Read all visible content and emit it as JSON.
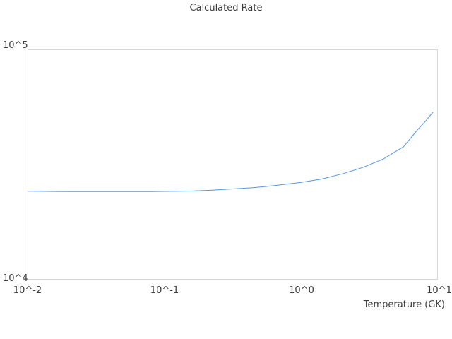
{
  "chart_data": {
    "type": "line",
    "title": "Calculated Rate",
    "xlabel": "Temperature (GK)",
    "ylabel": "",
    "x_scale": "log",
    "y_scale": "log",
    "xlim": [
      0.01,
      10
    ],
    "ylim": [
      10000,
      100000
    ],
    "grid": false,
    "legend": false,
    "x_tick_labels": [
      "10^-2",
      "10^-1",
      "10^0",
      "10^1"
    ],
    "x_tick_values": [
      0.01,
      0.1,
      1,
      10
    ],
    "y_tick_labels": [
      "10^4",
      "10^5"
    ],
    "y_tick_values": [
      10000,
      100000
    ],
    "line_color": "#5596e6",
    "border_color": "#d8d8d8",
    "series": [
      {
        "name": "Calculated Rate",
        "x": [
          0.01,
          0.0126,
          0.0158,
          0.02,
          0.0316,
          0.0501,
          0.0794,
          0.1,
          0.158,
          0.224,
          0.316,
          0.447,
          0.631,
          0.794,
          1.0,
          1.41,
          2.0,
          2.82,
          3.98,
          5.62,
          7.08,
          7.94,
          8.91,
          9.2
        ],
        "values": [
          24230,
          24200,
          24160,
          24140,
          24140,
          24140,
          24150,
          24180,
          24260,
          24470,
          24790,
          25100,
          25600,
          26020,
          26450,
          27350,
          28800,
          30700,
          33400,
          37800,
          44700,
          48000,
          52200,
          53300
        ]
      }
    ]
  }
}
